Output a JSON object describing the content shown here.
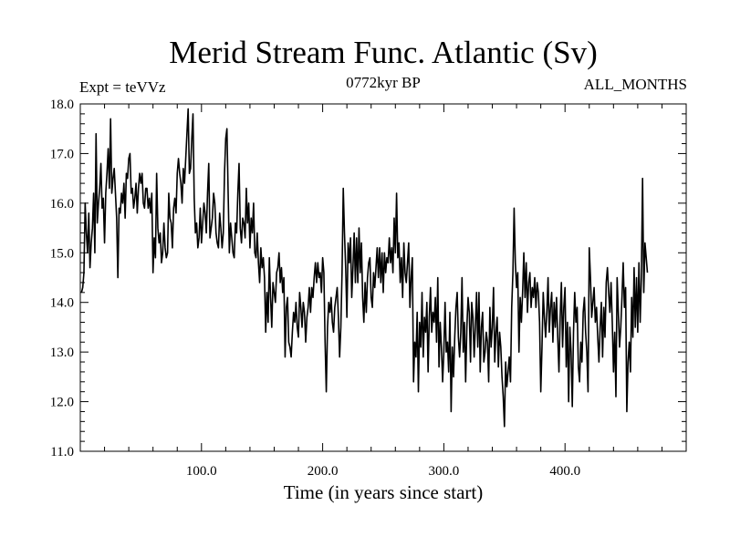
{
  "chart_data": {
    "type": "line",
    "title": "Merid Stream Func. Atlantic (Sv)",
    "subtitle_left": "Expt = teVVz",
    "subtitle_center": "0772kyr BP",
    "subtitle_right": "ALL_MONTHS",
    "xlabel": "Time (in years since start)",
    "ylabel": "",
    "xlim": [
      0,
      500
    ],
    "ylim": [
      11.0,
      18.0
    ],
    "x_ticks": [
      100.0,
      200.0,
      300.0,
      400.0
    ],
    "x_tick_labels": [
      "100.0",
      "200.0",
      "300.0",
      "400.0"
    ],
    "y_ticks": [
      11.0,
      12.0,
      13.0,
      14.0,
      15.0,
      16.0,
      17.0,
      18.0
    ],
    "y_tick_labels": [
      "11.0",
      "12.0",
      "13.0",
      "14.0",
      "15.0",
      "16.0",
      "17.0",
      "18.0"
    ],
    "grid": false,
    "line_color": "#000000",
    "series": [
      {
        "x_start": 1,
        "x_step": 1,
        "values": [
          14.2,
          14.3,
          14.6,
          16.0,
          15.4,
          15.0,
          15.8,
          14.7,
          15.2,
          15.5,
          16.2,
          15.0,
          17.4,
          15.6,
          16.0,
          16.3,
          16.8,
          15.9,
          16.1,
          15.2,
          16.2,
          16.6,
          17.1,
          16.3,
          17.7,
          16.2,
          16.5,
          16.7,
          16.2,
          15.7,
          14.5,
          15.9,
          15.8,
          16.2,
          16.0,
          16.4,
          15.7,
          16.6,
          16.5,
          16.9,
          17.0,
          16.2,
          16.3,
          15.9,
          16.1,
          16.4,
          15.8,
          16.3,
          16.6,
          16.4,
          16.6,
          16.0,
          15.9,
          16.3,
          16.3,
          15.9,
          16.1,
          15.8,
          16.2,
          14.6,
          15.3,
          14.9,
          16.6,
          15.5,
          15.2,
          15.4,
          14.8,
          15.0,
          15.6,
          15.1,
          14.9,
          15.0,
          16.2,
          15.7,
          15.6,
          15.1,
          15.9,
          16.1,
          15.8,
          16.6,
          16.9,
          16.6,
          16.4,
          16.0,
          16.7,
          16.4,
          16.9,
          17.4,
          17.9,
          16.6,
          16.7,
          17.3,
          17.8,
          16.1,
          15.4,
          15.6,
          15.1,
          15.3,
          15.9,
          15.2,
          15.6,
          16.0,
          15.8,
          15.4,
          16.2,
          16.8,
          15.3,
          15.5,
          15.7,
          16.2,
          16.0,
          15.4,
          15.2,
          15.1,
          15.8,
          15.5,
          15.1,
          15.4,
          16.6,
          17.3,
          17.5,
          16.2,
          15.0,
          15.6,
          15.3,
          15.0,
          14.9,
          15.6,
          15.4,
          16.2,
          16.8,
          15.5,
          15.2,
          15.7,
          15.6,
          15.3,
          16.3,
          15.6,
          16.0,
          15.1,
          15.7,
          15.4,
          16.0,
          15.0,
          14.9,
          15.4,
          14.8,
          14.4,
          15.1,
          14.7,
          14.9,
          14.5,
          13.4,
          14.2,
          13.6,
          14.9,
          14.1,
          13.5,
          14.4,
          14.2,
          14.0,
          14.6,
          14.7,
          15.0,
          14.4,
          14.7,
          14.2,
          14.5,
          12.9,
          13.9,
          14.1,
          13.2,
          13.1,
          12.9,
          13.4,
          13.8,
          13.6,
          14.0,
          13.5,
          13.3,
          14.2,
          13.9,
          13.5,
          14.0,
          13.8,
          13.2,
          13.7,
          13.9,
          14.3,
          13.8,
          14.3,
          14.1,
          14.5,
          14.8,
          14.4,
          14.8,
          14.5,
          14.6,
          14.2,
          14.9,
          14.6,
          13.2,
          12.2,
          13.5,
          14.0,
          13.8,
          14.1,
          13.6,
          13.4,
          13.9,
          14.1,
          14.3,
          13.7,
          12.9,
          13.5,
          14.6,
          16.3,
          15.4,
          14.7,
          13.7,
          15.2,
          14.8,
          15.3,
          14.1,
          14.7,
          15.4,
          14.4,
          15.3,
          14.4,
          15.5,
          14.6,
          15.2,
          14.1,
          13.6,
          14.4,
          13.8,
          14.5,
          14.8,
          14.9,
          14.1,
          13.9,
          14.6,
          14.3,
          14.7,
          15.1,
          14.5,
          15.1,
          14.4,
          15.0,
          14.2,
          15.0,
          14.6,
          14.9,
          14.8,
          15.3,
          14.8,
          15.1,
          14.6,
          15.7,
          15.0,
          16.2,
          14.9,
          15.2,
          14.4,
          14.9,
          14.1,
          15.2,
          14.6,
          14.4,
          14.8,
          15.2,
          13.9,
          14.5,
          14.9,
          12.4,
          13.2,
          12.9,
          13.8,
          12.2,
          13.6,
          13.1,
          14.2,
          12.9,
          13.7,
          13.4,
          14.0,
          12.6,
          13.7,
          14.3,
          13.4,
          13.8,
          13.6,
          14.1,
          13.2,
          14.5,
          12.7,
          13.6,
          13.1,
          12.4,
          13.0,
          14.0,
          13.0,
          13.2,
          12.6,
          13.8,
          11.8,
          13.1,
          12.5,
          13.3,
          13.9,
          14.2,
          13.3,
          12.9,
          13.4,
          14.5,
          13.0,
          13.6,
          12.4,
          13.5,
          14.1,
          13.8,
          12.8,
          14.0,
          13.7,
          12.9,
          13.5,
          14.2,
          13.1,
          14.2,
          12.6,
          13.5,
          13.8,
          12.8,
          13.0,
          13.4,
          13.2,
          12.4,
          13.9,
          13.1,
          13.5,
          14.3,
          12.8,
          13.4,
          13.7,
          12.7,
          13.4,
          13.1,
          12.5,
          12.1,
          11.5,
          12.8,
          12.3,
          12.6,
          12.9,
          12.4,
          13.9,
          14.6,
          15.9,
          14.8,
          14.3,
          14.6,
          13.0,
          14.1,
          13.6,
          14.2,
          15.0,
          14.1,
          14.8,
          13.8,
          14.4,
          14.6,
          13.9,
          14.3,
          14.1,
          14.5,
          13.9,
          14.4,
          14.2,
          13.6,
          12.2,
          13.1,
          14.2,
          13.7,
          13.3,
          13.8,
          14.5,
          13.4,
          13.9,
          14.2,
          13.2,
          14.0,
          13.5,
          14.1,
          13.3,
          12.6,
          13.7,
          14.4,
          13.1,
          13.9,
          14.3,
          12.7,
          13.6,
          12.0,
          13.5,
          13.0,
          11.9,
          13.4,
          14.2,
          13.6,
          13.9,
          12.7,
          12.4,
          13.2,
          12.8,
          13.8,
          14.1,
          13.4,
          13.0,
          12.2,
          15.1,
          14.5,
          13.7,
          14.0,
          14.3,
          13.6,
          13.9,
          13.3,
          12.8,
          13.5,
          14.0,
          12.9,
          13.9,
          13.3,
          14.4,
          14.7,
          14.2,
          13.8,
          14.4,
          13.6,
          12.6,
          13.4,
          12.1,
          14.5,
          13.8,
          13.1,
          13.5,
          14.1,
          14.8,
          13.9,
          14.3,
          11.8,
          12.8,
          13.2,
          12.6,
          14.1,
          13.3,
          14.7,
          13.5,
          14.5,
          13.4,
          14.8,
          13.6,
          14.5,
          16.5,
          14.2,
          15.2,
          14.9,
          14.6
        ]
      }
    ]
  }
}
